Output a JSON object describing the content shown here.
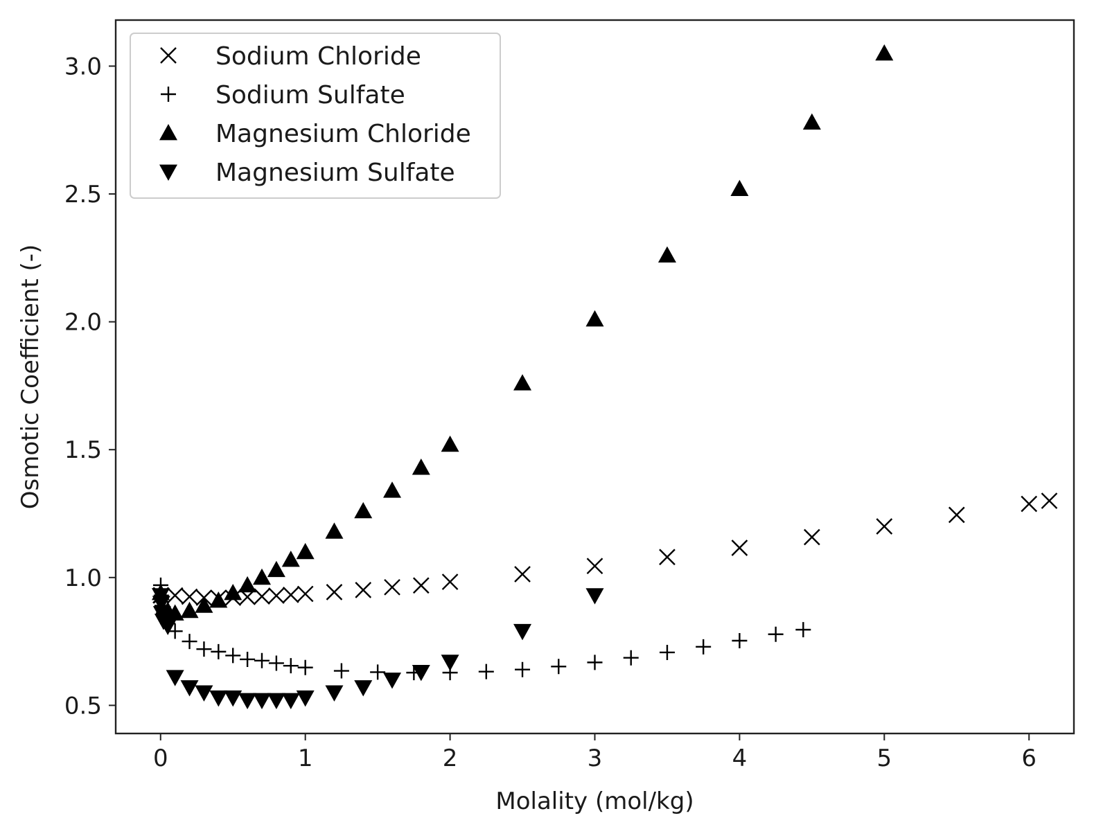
{
  "chart_data": {
    "type": "scatter",
    "title": "",
    "xlabel": "Molality (mol/kg)",
    "ylabel": "Osmotic Coefficient (-)",
    "xlim": [
      -0.31,
      6.31
    ],
    "ylim": [
      0.39,
      3.18
    ],
    "xticks": [
      0,
      1,
      2,
      3,
      4,
      5,
      6
    ],
    "xtick_labels": [
      "0",
      "1",
      "2",
      "3",
      "4",
      "5",
      "6"
    ],
    "yticks": [
      0.5,
      1.0,
      1.5,
      2.0,
      2.5,
      3.0
    ],
    "ytick_labels": [
      "0.5",
      "1.0",
      "1.5",
      "2.0",
      "2.5",
      "3.0"
    ],
    "grid": false,
    "legend_position": "top-left",
    "series": [
      {
        "name": "Sodium Chloride",
        "marker": "x",
        "points": [
          [
            0.001,
            0.93
          ],
          [
            0.005,
            0.93
          ],
          [
            0.1,
            0.93
          ],
          [
            0.2,
            0.925
          ],
          [
            0.3,
            0.921
          ],
          [
            0.4,
            0.92
          ],
          [
            0.5,
            0.921
          ],
          [
            0.6,
            0.924
          ],
          [
            0.7,
            0.926
          ],
          [
            0.8,
            0.929
          ],
          [
            0.9,
            0.932
          ],
          [
            1.0,
            0.936
          ],
          [
            1.2,
            0.943
          ],
          [
            1.4,
            0.951
          ],
          [
            1.6,
            0.962
          ],
          [
            1.8,
            0.969
          ],
          [
            2.0,
            0.983
          ],
          [
            2.5,
            1.013
          ],
          [
            3.0,
            1.045
          ],
          [
            3.5,
            1.08
          ],
          [
            4.0,
            1.116
          ],
          [
            4.5,
            1.158
          ],
          [
            5.0,
            1.2
          ],
          [
            5.5,
            1.245
          ],
          [
            6.0,
            1.288
          ],
          [
            6.14,
            1.3
          ]
        ]
      },
      {
        "name": "Sodium Sulfate",
        "marker": "plus",
        "points": [
          [
            0.001,
            0.97
          ],
          [
            0.005,
            0.93
          ],
          [
            0.01,
            0.89
          ],
          [
            0.02,
            0.86
          ],
          [
            0.05,
            0.82
          ],
          [
            0.1,
            0.79
          ],
          [
            0.2,
            0.75
          ],
          [
            0.3,
            0.72
          ],
          [
            0.4,
            0.71
          ],
          [
            0.5,
            0.695
          ],
          [
            0.6,
            0.68
          ],
          [
            0.7,
            0.675
          ],
          [
            0.8,
            0.665
          ],
          [
            0.9,
            0.655
          ],
          [
            1.0,
            0.648
          ],
          [
            1.25,
            0.635
          ],
          [
            1.5,
            0.63
          ],
          [
            1.75,
            0.628
          ],
          [
            2.0,
            0.628
          ],
          [
            2.25,
            0.632
          ],
          [
            2.5,
            0.64
          ],
          [
            2.75,
            0.652
          ],
          [
            3.0,
            0.668
          ],
          [
            3.25,
            0.686
          ],
          [
            3.5,
            0.707
          ],
          [
            3.75,
            0.729
          ],
          [
            4.0,
            0.753
          ],
          [
            4.25,
            0.778
          ],
          [
            4.44,
            0.796
          ]
        ]
      },
      {
        "name": "Magnesium Chloride",
        "marker": "triangle-up",
        "points": [
          [
            0.001,
            0.94
          ],
          [
            0.05,
            0.87
          ],
          [
            0.1,
            0.86
          ],
          [
            0.2,
            0.87
          ],
          [
            0.3,
            0.89
          ],
          [
            0.4,
            0.91
          ],
          [
            0.5,
            0.94
          ],
          [
            0.6,
            0.97
          ],
          [
            0.7,
            1.0
          ],
          [
            0.8,
            1.03
          ],
          [
            0.9,
            1.07
          ],
          [
            1.0,
            1.1
          ],
          [
            1.2,
            1.18
          ],
          [
            1.4,
            1.26
          ],
          [
            1.6,
            1.34
          ],
          [
            1.8,
            1.43
          ],
          [
            2.0,
            1.52
          ],
          [
            2.5,
            1.76
          ],
          [
            3.0,
            2.01
          ],
          [
            3.5,
            2.26
          ],
          [
            4.0,
            2.52
          ],
          [
            4.5,
            2.78
          ],
          [
            5.0,
            3.05
          ]
        ]
      },
      {
        "name": "Magnesium Sulfate",
        "marker": "triangle-down",
        "points": [
          [
            0.001,
            0.93
          ],
          [
            0.005,
            0.9
          ],
          [
            0.01,
            0.86
          ],
          [
            0.02,
            0.83
          ],
          [
            0.05,
            0.81
          ],
          [
            0.1,
            0.61
          ],
          [
            0.2,
            0.57
          ],
          [
            0.3,
            0.55
          ],
          [
            0.4,
            0.53
          ],
          [
            0.5,
            0.53
          ],
          [
            0.6,
            0.52
          ],
          [
            0.7,
            0.52
          ],
          [
            0.8,
            0.52
          ],
          [
            0.9,
            0.52
          ],
          [
            1.0,
            0.53
          ],
          [
            1.2,
            0.55
          ],
          [
            1.4,
            0.57
          ],
          [
            1.6,
            0.6
          ],
          [
            1.8,
            0.63
          ],
          [
            2.0,
            0.67
          ],
          [
            2.5,
            0.79
          ],
          [
            3.0,
            0.93
          ]
        ]
      }
    ]
  }
}
